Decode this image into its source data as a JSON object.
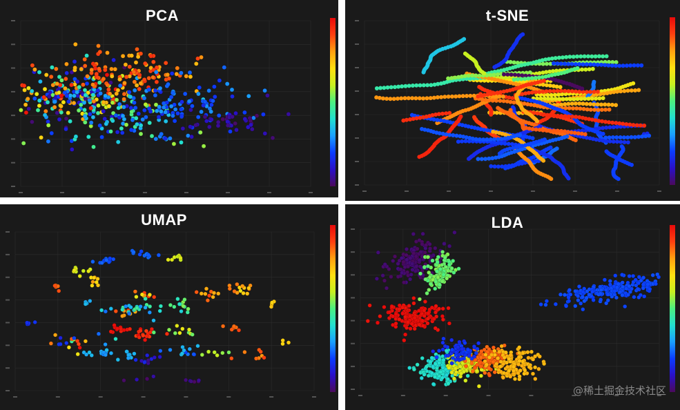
{
  "watermark": "@稀土掘金技术社区",
  "colorscale": [
    "#4b0a5c",
    "#2a10c8",
    "#0b3cff",
    "#1aa0ff",
    "#22e0d0",
    "#4cf080",
    "#c8f020",
    "#ffe010",
    "#ffa010",
    "#ff4010",
    "#e80a0a"
  ],
  "chart_data": [
    {
      "type": "scatter",
      "title": "PCA",
      "grid": true,
      "xlim": [
        -4,
        8
      ],
      "ylim": [
        -4,
        4
      ],
      "color_scale": "rainbow",
      "clusters": [
        {
          "x": -2.0,
          "y": 0.4,
          "sx": 1.4,
          "sy": 0.7,
          "n": 240,
          "c": [
            0.0,
            1.0
          ]
        },
        {
          "x": 0.6,
          "y": 1.5,
          "sx": 1.3,
          "sy": 0.6,
          "n": 110,
          "c": [
            0.75,
            0.95
          ]
        },
        {
          "x": 0.5,
          "y": -0.8,
          "sx": 1.6,
          "sy": 0.6,
          "n": 100,
          "c": [
            0.1,
            0.6
          ]
        },
        {
          "x": 2.5,
          "y": 0.0,
          "sx": 1.3,
          "sy": 0.7,
          "n": 90,
          "c": [
            0.15,
            0.3
          ]
        },
        {
          "x": 4.3,
          "y": -0.9,
          "sx": 1.0,
          "sy": 0.3,
          "n": 40,
          "c": [
            0.0,
            0.1
          ]
        }
      ]
    },
    {
      "type": "scatter",
      "title": "t-SNE",
      "grid": true,
      "xlim": [
        -60,
        60
      ],
      "ylim": [
        -60,
        60
      ],
      "color_scale": "rainbow",
      "trails": 58,
      "clusters": [
        {
          "x": 0,
          "y": 15,
          "sx": 24,
          "sy": 10,
          "n": 0,
          "c": [
            0.0,
            1.0
          ]
        },
        {
          "x": -5,
          "y": -10,
          "sx": 18,
          "sy": 8,
          "n": 0,
          "c": [
            0.75,
            0.95
          ]
        },
        {
          "x": 25,
          "y": -25,
          "sx": 15,
          "sy": 8,
          "n": 0,
          "c": [
            0.15,
            0.25
          ]
        }
      ]
    },
    {
      "type": "scatter",
      "title": "UMAP",
      "grid": true,
      "xlim": [
        -5,
        20
      ],
      "ylim": [
        -10,
        15
      ],
      "color_scale": "rainbow",
      "clusters": [
        {
          "x": -4.0,
          "y": 0.5,
          "sx": 0.3,
          "sy": 0.2,
          "n": 6,
          "c": [
            0.15,
            0.2
          ]
        },
        {
          "x": 0.5,
          "y": 9.0,
          "sx": 0.5,
          "sy": 0.3,
          "n": 10,
          "c": [
            0.6,
            0.7
          ]
        },
        {
          "x": 2.5,
          "y": 10.5,
          "sx": 0.6,
          "sy": 0.3,
          "n": 12,
          "c": [
            0.2,
            0.25
          ]
        },
        {
          "x": 6.0,
          "y": 11.5,
          "sx": 0.6,
          "sy": 0.3,
          "n": 12,
          "c": [
            0.2,
            0.25
          ]
        },
        {
          "x": 8.5,
          "y": 11.0,
          "sx": 0.4,
          "sy": 0.3,
          "n": 8,
          "c": [
            0.6,
            0.65
          ]
        },
        {
          "x": 1.5,
          "y": 7.0,
          "sx": 0.3,
          "sy": 0.5,
          "n": 8,
          "c": [
            0.7,
            0.85
          ]
        },
        {
          "x": 1.0,
          "y": 4.0,
          "sx": 0.2,
          "sy": 0.3,
          "n": 5,
          "c": [
            0.3,
            0.35
          ]
        },
        {
          "x": 4.0,
          "y": 2.0,
          "sx": 0.5,
          "sy": 0.5,
          "n": 8,
          "c": [
            0.75,
            0.95
          ]
        },
        {
          "x": 6.0,
          "y": 5.0,
          "sx": 0.5,
          "sy": 0.6,
          "n": 10,
          "c": [
            0.6,
            0.95
          ]
        },
        {
          "x": 5.0,
          "y": 3.0,
          "sx": 1.2,
          "sy": 0.7,
          "n": 24,
          "c": [
            0.25,
            0.5
          ]
        },
        {
          "x": 8.5,
          "y": 3.5,
          "sx": 0.6,
          "sy": 0.5,
          "n": 12,
          "c": [
            0.35,
            0.65
          ]
        },
        {
          "x": 11.0,
          "y": 5.0,
          "sx": 0.7,
          "sy": 0.5,
          "n": 10,
          "c": [
            0.75,
            0.9
          ]
        },
        {
          "x": 13.5,
          "y": 6.0,
          "sx": 0.6,
          "sy": 0.5,
          "n": 14,
          "c": [
            0.65,
            0.85
          ]
        },
        {
          "x": 3.5,
          "y": -0.5,
          "sx": 0.6,
          "sy": 0.4,
          "n": 12,
          "c": [
            0.95,
            1.0
          ]
        },
        {
          "x": 6.0,
          "y": -1.0,
          "sx": 0.8,
          "sy": 0.5,
          "n": 16,
          "c": [
            0.9,
            1.0
          ]
        },
        {
          "x": 8.5,
          "y": -0.5,
          "sx": 0.6,
          "sy": 0.4,
          "n": 10,
          "c": [
            0.5,
            0.7
          ]
        },
        {
          "x": 2.5,
          "y": -4.0,
          "sx": 0.8,
          "sy": 0.4,
          "n": 14,
          "c": [
            0.25,
            0.35
          ]
        },
        {
          "x": 4.5,
          "y": -4.5,
          "sx": 0.5,
          "sy": 0.3,
          "n": 10,
          "c": [
            0.3,
            0.35
          ]
        },
        {
          "x": 6.0,
          "y": -5.0,
          "sx": 0.6,
          "sy": 0.4,
          "n": 10,
          "c": [
            0.0,
            0.2
          ]
        },
        {
          "x": 9.0,
          "y": -3.5,
          "sx": 0.8,
          "sy": 0.5,
          "n": 12,
          "c": [
            0.15,
            0.35
          ]
        },
        {
          "x": 11.5,
          "y": -4.0,
          "sx": 0.5,
          "sy": 0.3,
          "n": 6,
          "c": [
            0.5,
            0.6
          ]
        },
        {
          "x": 13.0,
          "y": 0.0,
          "sx": 0.5,
          "sy": 0.3,
          "n": 6,
          "c": [
            0.85,
            0.9
          ]
        },
        {
          "x": 15.0,
          "y": -4.5,
          "sx": 0.7,
          "sy": 0.4,
          "n": 8,
          "c": [
            0.8,
            0.9
          ]
        },
        {
          "x": 16.5,
          "y": 3.5,
          "sx": 0.3,
          "sy": 0.3,
          "n": 4,
          "c": [
            0.7,
            0.75
          ]
        },
        {
          "x": 17.5,
          "y": -2.0,
          "sx": 0.2,
          "sy": 0.3,
          "n": 3,
          "c": [
            0.7,
            0.75
          ]
        },
        {
          "x": 10.0,
          "y": -8.5,
          "sx": 0.5,
          "sy": 0.2,
          "n": 6,
          "c": [
            0.0,
            0.1
          ]
        },
        {
          "x": 5.5,
          "y": -8.0,
          "sx": 0.5,
          "sy": 0.3,
          "n": 5,
          "c": [
            0.0,
            0.1
          ]
        },
        {
          "x": -1.5,
          "y": 6.5,
          "sx": 0.3,
          "sy": 0.3,
          "n": 5,
          "c": [
            0.85,
            0.9
          ]
        },
        {
          "x": 0.0,
          "y": -2.5,
          "sx": 1.2,
          "sy": 0.9,
          "n": 18,
          "c": [
            0.0,
            1.0
          ]
        }
      ]
    },
    {
      "type": "scatter",
      "title": "LDA",
      "grid": true,
      "xlim": [
        -10,
        10
      ],
      "ylim": [
        -8,
        8
      ],
      "color_scale": "rainbow",
      "clusters": [
        {
          "x": -6.2,
          "y": 4.8,
          "sx": 0.7,
          "sy": 1.2,
          "n": 150,
          "c": [
            0.0,
            0.03
          ],
          "rot": -0.7
        },
        {
          "x": -4.8,
          "y": 3.6,
          "sx": 0.5,
          "sy": 0.9,
          "n": 120,
          "c": [
            0.5,
            0.55
          ],
          "rot": -0.3
        },
        {
          "x": -6.5,
          "y": -0.8,
          "sx": 1.0,
          "sy": 0.6,
          "n": 160,
          "c": [
            0.98,
            1.0
          ],
          "rot": 0.0
        },
        {
          "x": 7.0,
          "y": 2.0,
          "sx": 2.0,
          "sy": 0.5,
          "n": 220,
          "c": [
            0.2,
            0.22
          ],
          "rot": 0.3
        },
        {
          "x": -4.6,
          "y": -6.0,
          "sx": 0.8,
          "sy": 0.7,
          "n": 140,
          "c": [
            0.38,
            0.42
          ],
          "rot": 0.0
        },
        {
          "x": -3.0,
          "y": -5.5,
          "sx": 0.7,
          "sy": 0.6,
          "n": 130,
          "c": [
            0.62,
            0.66
          ],
          "rot": 0.0
        },
        {
          "x": -1.5,
          "y": -5.0,
          "sx": 0.7,
          "sy": 0.6,
          "n": 120,
          "c": [
            0.85,
            0.88
          ],
          "rot": 0.0
        },
        {
          "x": 0.2,
          "y": -5.5,
          "sx": 0.8,
          "sy": 0.8,
          "n": 130,
          "c": [
            0.75,
            0.78
          ],
          "rot": 0.0
        },
        {
          "x": -3.5,
          "y": -4.2,
          "sx": 0.7,
          "sy": 0.4,
          "n": 70,
          "c": [
            0.15,
            0.2
          ],
          "rot": 0.0
        }
      ]
    }
  ]
}
